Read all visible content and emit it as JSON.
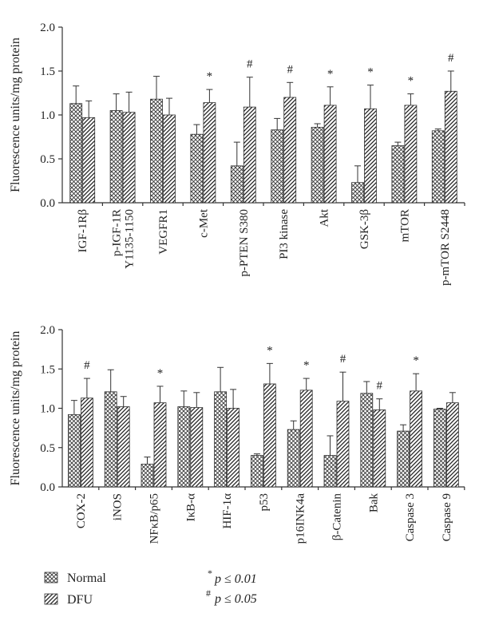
{
  "legend": {
    "series": [
      {
        "key": "normal",
        "label": "Normal",
        "pattern": "crosshatch"
      },
      {
        "key": "dfu",
        "label": "DFU",
        "pattern": "diagonal"
      }
    ],
    "sig": [
      {
        "sym": "*",
        "text": "p ≤ 0.01"
      },
      {
        "sym": "#",
        "text": "p ≤ 0.05"
      }
    ]
  },
  "chart_data": [
    {
      "type": "bar",
      "ylabel": "Fluorescence units/mg protein",
      "ylim": [
        0,
        2.0
      ],
      "yticks": [
        "0.0",
        "0.5",
        "1.0",
        "1.5",
        "2.0"
      ],
      "categories": [
        "IGF-1Rβ",
        "p-IGF-1R Y1135-1150",
        "VEGFR1",
        "c-Met",
        "p-PTEN S380",
        "PI3 kinase",
        "Akt",
        "GSK-3β",
        "mTOR",
        "p-mTOR S2448"
      ],
      "category_lines": [
        [
          "IGF-1Rβ"
        ],
        [
          "p-IGF-1R",
          "Y1135-1150"
        ],
        [
          "VEGFR1"
        ],
        [
          "c-Met"
        ],
        [
          "p-PTEN S380"
        ],
        [
          "PI3 kinase"
        ],
        [
          "Akt"
        ],
        [
          "GSK-3β"
        ],
        [
          "mTOR"
        ],
        [
          "p-mTOR S2448"
        ]
      ],
      "series": [
        {
          "name": "Normal",
          "values": [
            1.13,
            1.05,
            1.18,
            0.78,
            0.42,
            0.83,
            0.86,
            0.23,
            0.65,
            0.82
          ],
          "errors": [
            0.2,
            0.19,
            0.26,
            0.11,
            0.27,
            0.13,
            0.04,
            0.19,
            0.04,
            0.02
          ]
        },
        {
          "name": "DFU",
          "values": [
            0.97,
            1.03,
            1.0,
            1.14,
            1.09,
            1.2,
            1.11,
            1.07,
            1.11,
            1.27
          ],
          "errors": [
            0.19,
            0.23,
            0.19,
            0.15,
            0.34,
            0.17,
            0.21,
            0.27,
            0.13,
            0.23
          ]
        }
      ],
      "significance": [
        "",
        "",
        "",
        "*",
        "#",
        "#",
        "*",
        "*",
        "*",
        "#"
      ]
    },
    {
      "type": "bar",
      "ylabel": "Fluorescence units/mg protein",
      "ylim": [
        0,
        2.0
      ],
      "yticks": [
        "0.0",
        "0.5",
        "1.0",
        "1.5",
        "2.0"
      ],
      "categories": [
        "COX-2",
        "iNOS",
        "NFκB/p65",
        "IκB-α",
        "HIF-1α",
        "p53",
        "p16INK4a",
        "β-Catenin",
        "Bak",
        "Caspase 3",
        "Caspase 9"
      ],
      "category_lines": [
        [
          "COX-2"
        ],
        [
          "iNOS"
        ],
        [
          "NFκB/p65"
        ],
        [
          "IκB-α"
        ],
        [
          "HIF-1α"
        ],
        [
          "p53"
        ],
        [
          "p16INK4a"
        ],
        [
          "β-Catenin"
        ],
        [
          "Bak"
        ],
        [
          "Caspase 3"
        ],
        [
          "Caspase 9"
        ]
      ],
      "series": [
        {
          "name": "Normal",
          "values": [
            0.92,
            1.21,
            0.29,
            1.02,
            1.21,
            0.4,
            0.73,
            0.4,
            1.19,
            0.71,
            0.99
          ],
          "errors": [
            0.18,
            0.28,
            0.09,
            0.2,
            0.31,
            0.02,
            0.11,
            0.25,
            0.15,
            0.08,
            0.01
          ]
        },
        {
          "name": "DFU",
          "values": [
            1.13,
            1.02,
            1.07,
            1.01,
            1.0,
            1.31,
            1.23,
            1.09,
            0.98,
            1.22,
            1.07
          ],
          "errors": [
            0.25,
            0.13,
            0.21,
            0.19,
            0.24,
            0.26,
            0.15,
            0.37,
            0.14,
            0.22,
            0.13
          ]
        }
      ],
      "significance": [
        "#",
        "",
        "*",
        "",
        "",
        "*",
        "*",
        "#",
        "#",
        "*",
        ""
      ]
    }
  ]
}
